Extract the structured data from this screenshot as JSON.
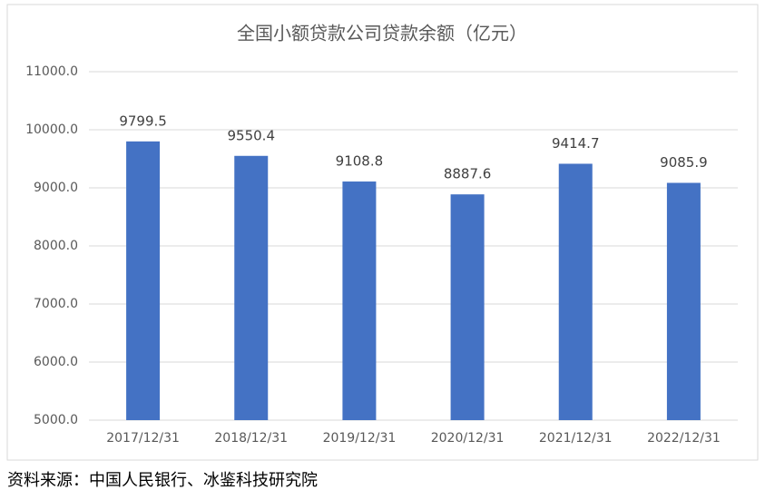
{
  "chart_data": {
    "type": "bar",
    "title": "全国小额贷款公司贷款余额（亿元）",
    "categories": [
      "2017/12/31",
      "2018/12/31",
      "2019/12/31",
      "2020/12/31",
      "2021/12/31",
      "2022/12/31"
    ],
    "values": [
      9799.5,
      9550.4,
      9108.8,
      8887.6,
      9414.7,
      9085.9
    ],
    "color": "#4472c4",
    "ylim": [
      5000,
      11000
    ],
    "yticks": [
      {
        "value": 5000,
        "label": "5000.0"
      },
      {
        "value": 6000,
        "label": "6000.0"
      },
      {
        "value": 7000,
        "label": "7000.0"
      },
      {
        "value": 8000,
        "label": "8000.0"
      },
      {
        "value": 9000,
        "label": "9000.0"
      },
      {
        "value": 10000,
        "label": "10000.0"
      },
      {
        "value": 11000,
        "label": "11000.0"
      }
    ],
    "grid": true,
    "source": "资料来源：中国人民银行、冰鉴科技研究院"
  }
}
